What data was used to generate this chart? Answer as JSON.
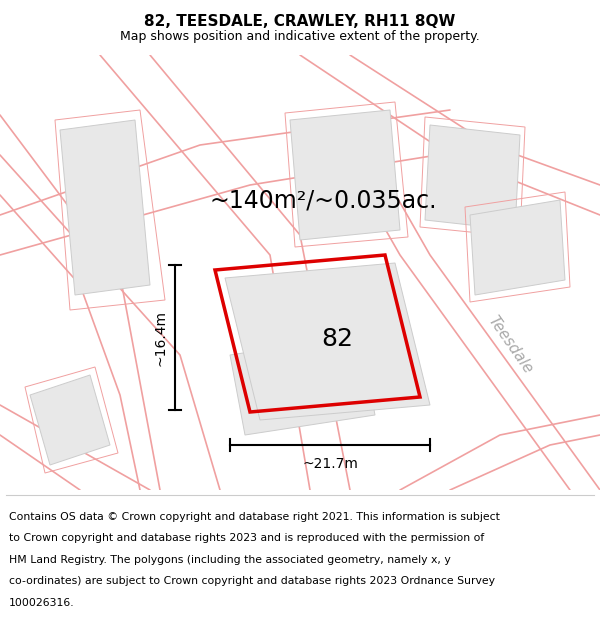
{
  "title": "82, TEESDALE, CRAWLEY, RH11 8QW",
  "subtitle": "Map shows position and indicative extent of the property.",
  "area_text": "~140m²/~0.035ac.",
  "dim_width": "~21.7m",
  "dim_height": "~16.4m",
  "plot_label": "82",
  "road_label": "Teesdale",
  "footer_lines": [
    "Contains OS data © Crown copyright and database right 2021. This information is subject",
    "to Crown copyright and database rights 2023 and is reproduced with the permission of",
    "HM Land Registry. The polygons (including the associated geometry, namely x, y",
    "co-ordinates) are subject to Crown copyright and database rights 2023 Ordnance Survey",
    "100026316."
  ],
  "map_bg": "#ffffff",
  "plot_color": "#dd0000",
  "road_color": "#f0a0a0",
  "road_lw": 1.2,
  "building_face": "#e8e8e8",
  "building_edge": "#cccccc",
  "title_fontsize": 11,
  "subtitle_fontsize": 9,
  "area_fontsize": 17,
  "label_fontsize": 18,
  "dim_fontsize": 10,
  "road_label_fontsize": 11,
  "footer_fontsize": 7.8
}
